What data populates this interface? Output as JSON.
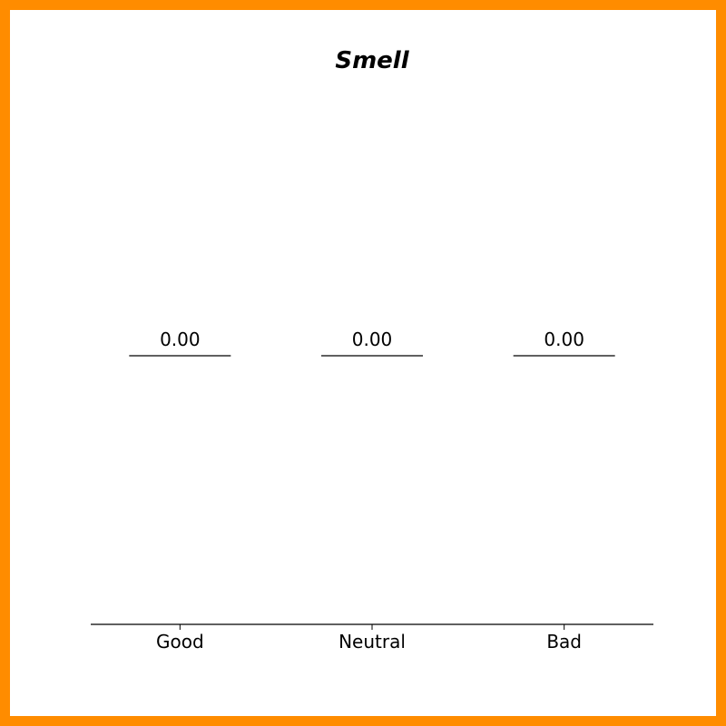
{
  "chart_data": {
    "type": "bar",
    "title": "Smell",
    "xlabel": "",
    "ylabel": "",
    "categories": [
      "Good",
      "Neutral",
      "Bad"
    ],
    "values": [
      0.0,
      0.0,
      0.0
    ],
    "value_labels": [
      "0.00",
      "0.00",
      "0.00"
    ],
    "grid": false,
    "legend": "none"
  },
  "colors": {
    "frame": "#ff8c00",
    "background": "#ffffff",
    "text": "#000000"
  }
}
